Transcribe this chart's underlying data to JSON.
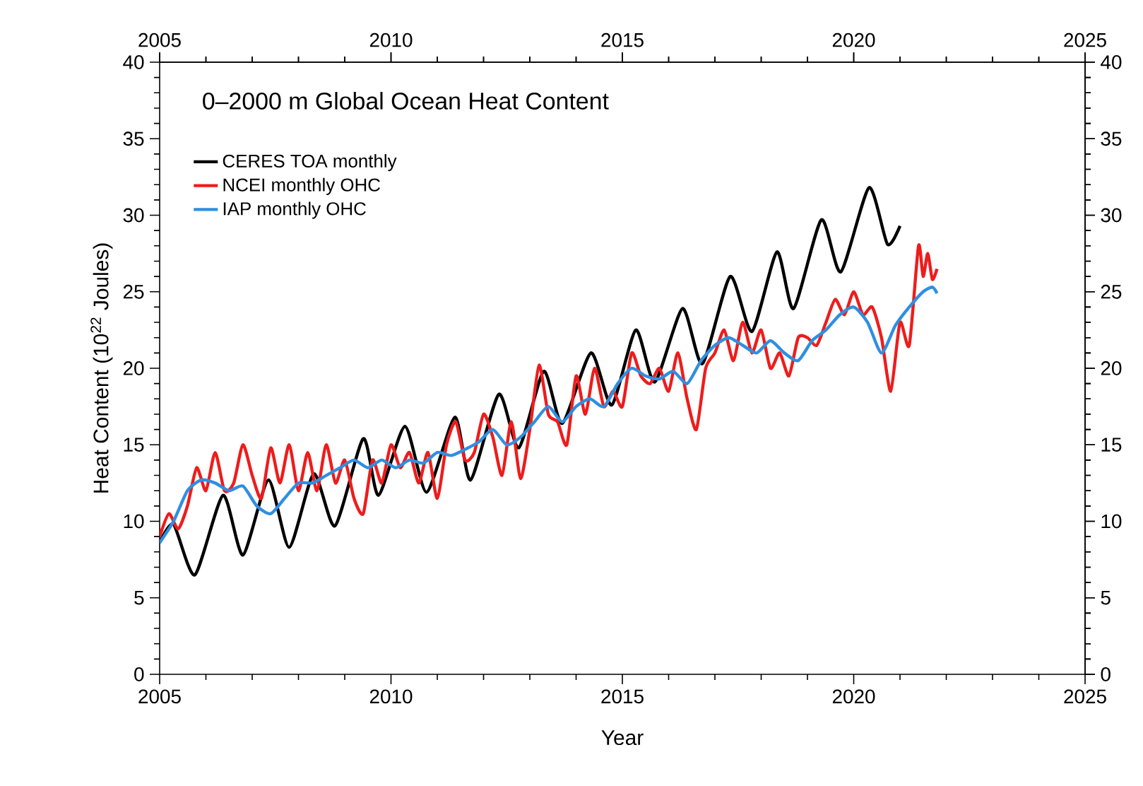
{
  "chart_data": {
    "type": "line",
    "title": "0–2000 m Global Ocean Heat Content",
    "xlabel": "Year",
    "ylabel": "Heat Content (10$^{22}$ Joules)",
    "xlim": [
      2005,
      2025
    ],
    "xticks": [
      2005,
      2010,
      2015,
      2020,
      2025
    ],
    "ylim": [
      0,
      40
    ],
    "yticks": [
      0,
      5,
      10,
      15,
      20,
      25,
      30,
      35,
      40
    ],
    "x2lim": [
      2005,
      2025
    ],
    "x2ticks": [
      2005,
      2010,
      2015,
      2020,
      2025
    ],
    "y2lim": [
      0,
      40
    ],
    "y2ticks": [
      0,
      5,
      10,
      15,
      20,
      25,
      30,
      35,
      40
    ],
    "legend": "top left",
    "series": [
      {
        "name": "CERES TOA monthly",
        "color": "#000000",
        "x": [
          2005.0,
          2005.3,
          2005.76,
          2006.37,
          2006.8,
          2007.35,
          2007.8,
          2008.33,
          2008.79,
          2009.4,
          2009.73,
          2010.3,
          2010.77,
          2011.38,
          2011.72,
          2012.33,
          2012.76,
          2013.3,
          2013.7,
          2014.32,
          2014.77,
          2015.29,
          2015.7,
          2016.3,
          2016.73,
          2017.33,
          2017.8,
          2018.34,
          2018.7,
          2019.3,
          2019.72,
          2020.33,
          2020.73,
          2021.0
        ],
        "values": [
          8.6,
          9.8,
          6.5,
          11.7,
          7.8,
          12.7,
          8.3,
          13.1,
          9.7,
          15.4,
          11.7,
          16.2,
          11.9,
          16.8,
          12.7,
          18.3,
          14.8,
          19.8,
          16.4,
          21.0,
          17.6,
          22.5,
          19.1,
          23.9,
          20.3,
          26.0,
          22.4,
          27.6,
          23.9,
          29.7,
          26.3,
          31.8,
          28.1,
          29.3
        ]
      },
      {
        "name": "NCEI monthly OHC",
        "color": "#ee1c1c",
        "x": [
          2005.0,
          2005.2,
          2005.4,
          2005.6,
          2005.8,
          2006.0,
          2006.2,
          2006.4,
          2006.6,
          2006.8,
          2007.0,
          2007.2,
          2007.4,
          2007.6,
          2007.8,
          2008.0,
          2008.2,
          2008.4,
          2008.6,
          2008.8,
          2009.0,
          2009.2,
          2009.4,
          2009.6,
          2009.8,
          2010.0,
          2010.2,
          2010.4,
          2010.6,
          2010.8,
          2011.0,
          2011.2,
          2011.4,
          2011.6,
          2011.8,
          2012.0,
          2012.2,
          2012.4,
          2012.6,
          2012.8,
          2013.0,
          2013.2,
          2013.4,
          2013.6,
          2013.8,
          2014.0,
          2014.2,
          2014.4,
          2014.6,
          2014.8,
          2015.0,
          2015.2,
          2015.4,
          2015.6,
          2015.8,
          2016.0,
          2016.2,
          2016.4,
          2016.6,
          2016.8,
          2017.0,
          2017.2,
          2017.4,
          2017.6,
          2017.8,
          2018.0,
          2018.2,
          2018.4,
          2018.6,
          2018.8,
          2019.0,
          2019.2,
          2019.4,
          2019.6,
          2019.8,
          2020.0,
          2020.2,
          2020.4,
          2020.6,
          2020.8,
          2021.0,
          2021.2,
          2021.4,
          2021.5,
          2021.6,
          2021.7,
          2021.8
        ],
        "values": [
          9,
          10.5,
          9.5,
          11,
          13.5,
          12,
          14.5,
          12,
          12.5,
          15,
          13,
          11.5,
          14.8,
          12.5,
          15,
          12,
          14.5,
          12,
          15,
          12.5,
          14,
          11.5,
          10.5,
          14,
          12.5,
          15,
          13.5,
          14.5,
          12.5,
          14.5,
          11.5,
          15,
          16.5,
          14,
          14.5,
          17,
          15.5,
          13,
          16.5,
          12.8,
          16,
          20.2,
          17,
          16.5,
          15,
          19.5,
          17,
          20,
          17.5,
          18.5,
          17.5,
          21,
          19.5,
          19,
          20,
          18.5,
          21,
          18,
          16,
          20,
          21,
          22.5,
          20.5,
          23,
          21,
          22.5,
          20,
          21,
          19.5,
          22,
          22,
          21.5,
          23,
          24.5,
          23.5,
          25,
          23.5,
          24,
          22,
          18.5,
          23,
          21.5,
          28,
          26,
          27.5,
          25.8,
          26.5
        ]
      },
      {
        "name": "IAP monthly OHC",
        "color": "#2f8fe0",
        "x": [
          2005.0,
          2005.3,
          2005.6,
          2005.9,
          2006.2,
          2006.5,
          2006.8,
          2007.1,
          2007.4,
          2007.7,
          2008.0,
          2008.3,
          2008.6,
          2008.9,
          2009.2,
          2009.5,
          2009.8,
          2010.1,
          2010.4,
          2010.7,
          2011.0,
          2011.3,
          2011.6,
          2011.9,
          2012.2,
          2012.5,
          2012.8,
          2013.1,
          2013.4,
          2013.7,
          2014.0,
          2014.3,
          2014.6,
          2014.9,
          2015.2,
          2015.5,
          2015.8,
          2016.1,
          2016.4,
          2016.7,
          2017.0,
          2017.3,
          2017.6,
          2017.9,
          2018.2,
          2018.5,
          2018.8,
          2019.1,
          2019.4,
          2019.7,
          2020.0,
          2020.3,
          2020.6,
          2020.9,
          2021.2,
          2021.5,
          2021.7,
          2021.8
        ],
        "values": [
          8.6,
          10,
          12,
          12.7,
          12.5,
          12,
          12.3,
          11,
          10.5,
          11.5,
          12.5,
          12.5,
          13,
          13.5,
          14,
          13.5,
          14,
          13.5,
          14,
          13.8,
          14.5,
          14.3,
          14.7,
          15.2,
          16,
          15,
          15.5,
          16.5,
          17.5,
          16.5,
          17.5,
          18,
          17.5,
          19,
          20,
          19.5,
          19.3,
          19.8,
          19,
          20.5,
          21.5,
          22,
          21.5,
          21,
          21.8,
          21,
          20.5,
          21.8,
          22.5,
          23.5,
          24,
          23,
          21,
          22.8,
          24,
          25,
          25.3,
          24.9
        ]
      }
    ]
  }
}
